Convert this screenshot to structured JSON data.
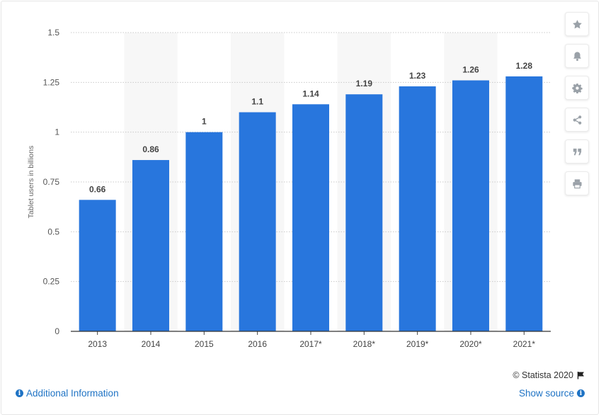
{
  "chart_data": {
    "type": "bar",
    "categories": [
      "2013",
      "2014",
      "2015",
      "2016",
      "2017*",
      "2018*",
      "2019*",
      "2020*",
      "2021*"
    ],
    "values": [
      0.66,
      0.86,
      1,
      1.1,
      1.14,
      1.19,
      1.23,
      1.26,
      1.28
    ],
    "value_labels": [
      "0.66",
      "0.86",
      "1",
      "1.1",
      "1.14",
      "1.19",
      "1.23",
      "1.26",
      "1.28"
    ],
    "ylabel": "Tablet users in billions",
    "ylim": [
      0,
      1.5
    ],
    "yticks": [
      "0",
      "0.25",
      "0.5",
      "0.75",
      "1",
      "1.25",
      "1.5"
    ],
    "grid": true,
    "bar_color": "#2876dd",
    "band_color": "#f7f7f7"
  },
  "toolbar": {
    "buttons": [
      {
        "name": "star-icon",
        "label": "Favorite"
      },
      {
        "name": "bell-icon",
        "label": "Notification"
      },
      {
        "name": "gear-icon",
        "label": "Settings"
      },
      {
        "name": "share-icon",
        "label": "Share"
      },
      {
        "name": "quote-icon",
        "label": "Cite"
      },
      {
        "name": "print-icon",
        "label": "Print"
      }
    ]
  },
  "footer": {
    "copyright": "© Statista 2020",
    "additional_info": "Additional Information",
    "show_source": "Show source"
  },
  "colors": {
    "link": "#1f73c4",
    "icon": "#9aa1a8"
  }
}
